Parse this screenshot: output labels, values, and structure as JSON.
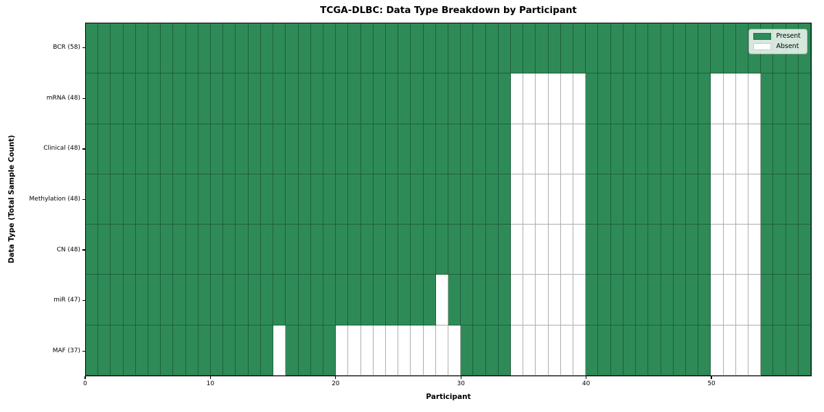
{
  "title": "TCGA-DLBC: Data Type Breakdown by Participant",
  "axes": {
    "xlabel": "Participant",
    "ylabel": "Data Type (Total Sample Count)"
  },
  "x_ticks": [
    0,
    10,
    20,
    30,
    40,
    50
  ],
  "legend": {
    "present_label": "Present",
    "absent_label": "Absent",
    "position": "upper right"
  },
  "colors": {
    "present": "#2E8B57",
    "absent": "#ffffff",
    "grid_line": "rgba(0,0,0,0.32)"
  },
  "chart_data": {
    "type": "heatmap",
    "title": "TCGA-DLBC: Data Type Breakdown by Participant",
    "xlabel": "Participant",
    "ylabel": "Data Type (Total Sample Count)",
    "x_range": [
      0,
      58
    ],
    "n_participants": 58,
    "x_tick_values": [
      0,
      10,
      20,
      30,
      40,
      50
    ],
    "legend_entries": [
      "Present",
      "Absent"
    ],
    "legend_position": "upper right",
    "grid": true,
    "rows": [
      {
        "label": "BCR (58)",
        "data_type": "BCR",
        "present_count": 58,
        "absent_participants": []
      },
      {
        "label": "mRNA (48)",
        "data_type": "mRNA",
        "present_count": 48,
        "absent_participants": [
          34,
          35,
          36,
          37,
          38,
          39,
          50,
          51,
          52,
          53
        ]
      },
      {
        "label": "Clinical (48)",
        "data_type": "Clinical",
        "present_count": 48,
        "absent_participants": [
          34,
          35,
          36,
          37,
          38,
          39,
          50,
          51,
          52,
          53
        ]
      },
      {
        "label": "Methylation (48)",
        "data_type": "Methylation",
        "present_count": 48,
        "absent_participants": [
          34,
          35,
          36,
          37,
          38,
          39,
          50,
          51,
          52,
          53
        ]
      },
      {
        "label": "CN (48)",
        "data_type": "CN",
        "present_count": 48,
        "absent_participants": [
          34,
          35,
          36,
          37,
          38,
          39,
          50,
          51,
          52,
          53
        ]
      },
      {
        "label": "miR (47)",
        "data_type": "miR",
        "present_count": 47,
        "absent_participants": [
          28,
          34,
          35,
          36,
          37,
          38,
          39,
          50,
          51,
          52,
          53
        ]
      },
      {
        "label": "MAF (37)",
        "data_type": "MAF",
        "present_count": 37,
        "absent_participants": [
          15,
          20,
          21,
          22,
          23,
          24,
          25,
          26,
          27,
          28,
          29,
          34,
          35,
          36,
          37,
          38,
          39,
          50,
          51,
          52,
          53
        ]
      }
    ]
  }
}
